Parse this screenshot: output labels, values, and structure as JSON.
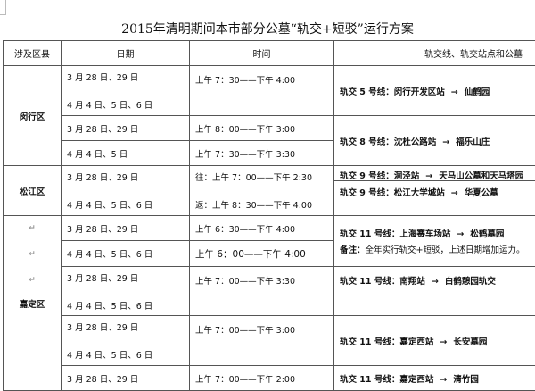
{
  "title": "2015年清明期间本市部分公墓“轨交+短驳”运行方案",
  "headers": {
    "district": "涉及区县",
    "date": "日期",
    "time": "时间",
    "route": "轨交线、轨交站点和公墓"
  },
  "arrow": "→",
  "return_mark": "↵",
  "rows": {
    "minhang": {
      "district": "闵行区",
      "r1": {
        "date1": "3 月 28 日、29 日",
        "date2": "4 月 4 日、5 日、6 日",
        "time": "上午 7：30——下午 4:00",
        "line": "轨交 5 号线：",
        "from": "闵行开发区站",
        "to": "仙鹤园"
      },
      "r2": {
        "date_a": "3 月 28 日、29 日",
        "time_a": "上午 8：00——下午 3:00",
        "date_b": "4 月 4 日、5 日",
        "time_b": "上午 7：30——下午 3:30",
        "line": "轨交 8 号线：",
        "from": "沈杜公路站",
        "to": "福乐山庄"
      }
    },
    "songjiang": {
      "district": "松江区",
      "date1": "3 月 28 日、29 日",
      "date2": "4 月 4 日、5 日、6 日",
      "time1": "往：上午 7：00——下午 2:30",
      "time2": "返：上午 8：30——下午 4:00",
      "route1": {
        "line": "轨交 9 号线：",
        "from": "洞泾站",
        "to": "天马山公墓和天马塔园"
      },
      "route2": {
        "line": "轨交 9 号线：",
        "from": "松江大学城站",
        "to": "华夏公墓"
      }
    },
    "jiading": {
      "district": "嘉定区",
      "r1": {
        "date_a": "3 月 28 日、29 日",
        "time_a": "上午 6：30——下午 4:00",
        "date_b": "4 月 4 日、5 日、6 日",
        "time_b": "上午 6：00——下午 4:00",
        "line": "轨交 11 号线：",
        "from": "上海赛车场站",
        "to": "松鹤墓园",
        "note_label": "备注：",
        "note": "全年实行轨交+短驳，上述日期增加运力。"
      },
      "r2": {
        "date1": "3 月 28 日、29 日",
        "date2": "4 月 4 日、5 日、6 日",
        "time": "上午 7：00——下午 3:30",
        "line": "轨交 11 号线：",
        "from": "南翔站",
        "to": "白鹤憩园轨交"
      },
      "r3": {
        "date1": "3 月 28 日、29 日",
        "date2": "4 月 4 日、5 日、6 日",
        "time": "上午 7：00——下午 3:00",
        "line": "轨交 11 号线：",
        "from": "嘉定西站",
        "to": "长安墓园"
      },
      "r4": {
        "date1": "3 月 28 日、29 日",
        "time": "上午 7：00——下午 2:00",
        "line": "轨交 11 号线：",
        "from": "嘉定西站",
        "to": "清竹园"
      }
    }
  }
}
